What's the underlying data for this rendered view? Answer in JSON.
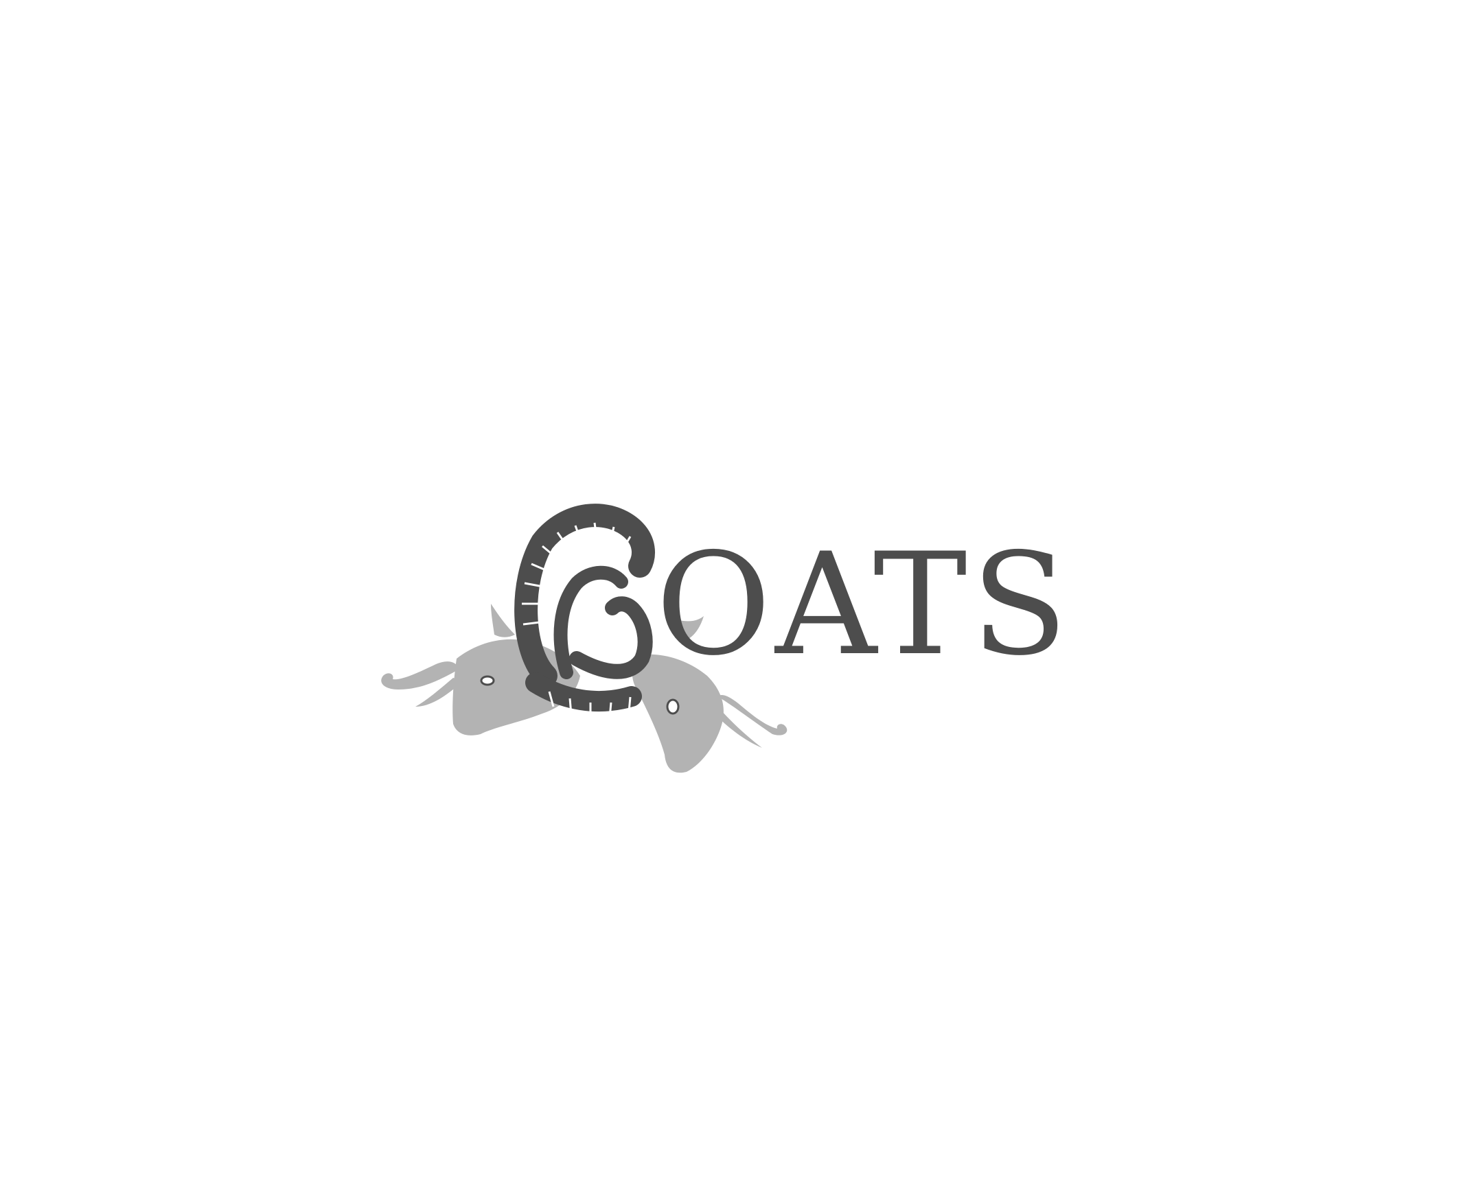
{
  "logo": {
    "wordmark_text": "OATS",
    "full_name": "GOATS",
    "dark_color": "#4d4d4d",
    "light_color": "#b3b3b3",
    "background_color": "#ffffff",
    "emblem": "two-goat-heads-horns-icon"
  }
}
